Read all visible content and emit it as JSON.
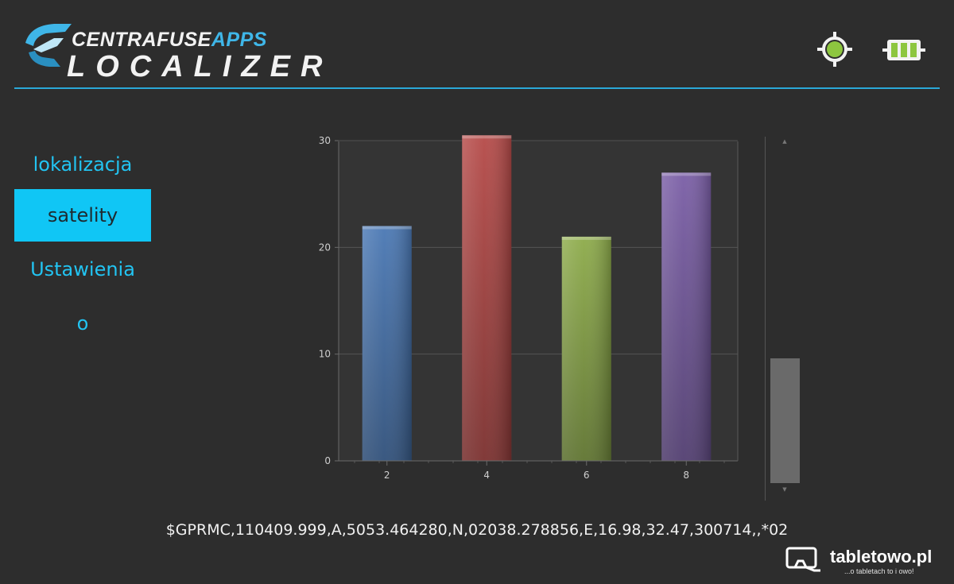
{
  "app": {
    "logo_top_main": "CENTRAFUSE",
    "logo_top_accent": "APPS",
    "logo_bottom": "LOCALIZER",
    "icons": [
      "gps-target-icon",
      "battery-icon"
    ]
  },
  "sidebar": {
    "items": [
      {
        "label": "lokalizacja",
        "active": false
      },
      {
        "label": "satelity",
        "active": true
      },
      {
        "label": "Ustawienia",
        "active": false
      },
      {
        "label": "o",
        "active": false
      }
    ]
  },
  "chart_data": {
    "type": "bar",
    "categories": [
      "2",
      "4",
      "6",
      "8"
    ],
    "values": [
      22,
      30.5,
      21,
      27
    ],
    "colors": [
      "#4a78b4",
      "#b54a48",
      "#8dab4a",
      "#7a5ea6"
    ],
    "title": "",
    "xlabel": "",
    "ylabel": "",
    "ylim": [
      0,
      30
    ],
    "yticks": [
      0,
      10,
      20,
      30
    ],
    "grid": true
  },
  "nmea_sentence": "$GPRMC,110409.999,A,5053.464280,N,02038.278856,E,16.98,32.47,300714,,*02",
  "watermark": {
    "name": "tabletowo.pl",
    "tagline": "...o tabletach to i owo!"
  },
  "theme": {
    "accent": "#22c4f2",
    "active_bg": "#10c6f5",
    "background": "#2d2d2d"
  }
}
